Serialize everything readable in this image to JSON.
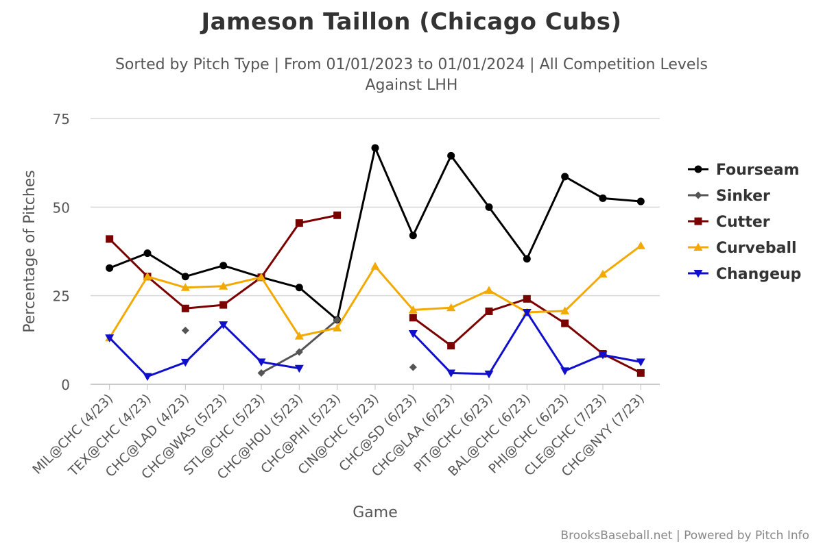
{
  "chart_data": {
    "type": "line",
    "title": "Jameson Taillon (Chicago Cubs)",
    "subtitle_line1": "Sorted by Pitch Type | From 01/01/2023 to 01/01/2024 | All Competition Levels",
    "subtitle_line2": "Against LHH",
    "xlabel": "Game",
    "ylabel": "Percentage of Pitches",
    "ylim": [
      0,
      75
    ],
    "yticks": [
      0,
      25,
      50,
      75
    ],
    "grid": true,
    "legend_position": "right",
    "categories": [
      "MIL@CHC (4/23)",
      "TEX@CHC (4/23)",
      "CHC@LAD (4/23)",
      "CHC@WAS (5/23)",
      "STL@CHC (5/23)",
      "CHC@HOU (5/23)",
      "CHC@PHI (5/23)",
      "CIN@CHC (5/23)",
      "CHC@SD (6/23)",
      "CHC@LAA (6/23)",
      "PIT@CHC (6/23)",
      "BAL@CHC (6/23)",
      "PHI@CHC (6/23)",
      "CLE@CHC (7/23)",
      "CHC@NYY (7/23)"
    ],
    "series": [
      {
        "name": "Fourseam",
        "color": "#000000",
        "marker": "circle",
        "values": [
          32.8,
          37.0,
          30.4,
          33.5,
          30.2,
          27.3,
          18.2,
          66.7,
          42.0,
          64.5,
          50.0,
          35.4,
          58.6,
          52.5,
          51.6
        ]
      },
      {
        "name": "Sinker",
        "color": "#555555",
        "marker": "diamond",
        "values": [
          null,
          null,
          15.2,
          null,
          3.2,
          9.1,
          18.2,
          null,
          4.8,
          null,
          null,
          null,
          null,
          null,
          null
        ]
      },
      {
        "name": "Cutter",
        "color": "#7b0000",
        "marker": "square",
        "values": [
          41.0,
          30.4,
          21.4,
          22.4,
          30.2,
          45.5,
          47.7,
          null,
          18.8,
          10.9,
          20.6,
          24.1,
          17.2,
          8.6,
          3.2
        ]
      },
      {
        "name": "Curveball",
        "color": "#f2a900",
        "marker": "triangle",
        "values": [
          13.1,
          30.4,
          27.3,
          27.7,
          30.2,
          13.6,
          15.9,
          33.3,
          21.0,
          21.6,
          26.5,
          20.3,
          20.7,
          31.1,
          39.1
        ]
      },
      {
        "name": "Changeup",
        "color": "#1010cc",
        "marker": "triangle-down",
        "values": [
          13.1,
          2.2,
          6.2,
          16.8,
          6.3,
          4.5,
          null,
          null,
          14.3,
          3.2,
          2.9,
          20.3,
          3.8,
          8.3,
          6.3
        ]
      }
    ]
  },
  "credits": "BrooksBaseball.net | Powered by Pitch Info"
}
